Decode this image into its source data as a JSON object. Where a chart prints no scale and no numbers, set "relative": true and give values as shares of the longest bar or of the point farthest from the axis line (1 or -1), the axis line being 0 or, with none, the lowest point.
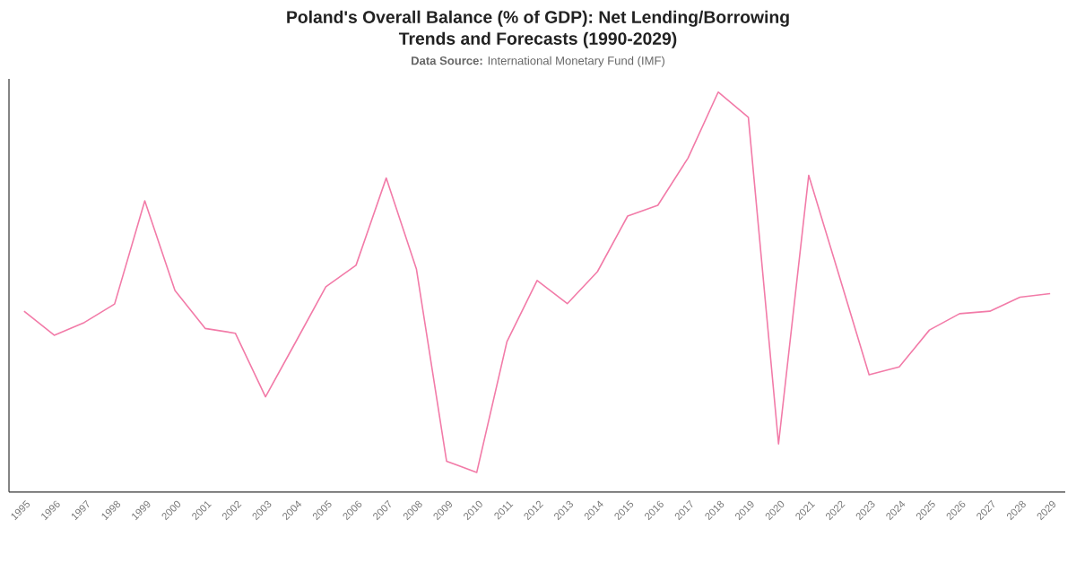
{
  "chart_data": {
    "type": "line",
    "title": "Poland's Overall Balance (% of GDP): Net Lending/Borrowing Trends and Forecasts (1990-2029)",
    "subtitle": "**Data Source:** International Monetary Fund (IMF)",
    "categories": [
      "1995",
      "1996",
      "1997",
      "1998",
      "1999",
      "2000",
      "2001",
      "2002",
      "2003",
      "2004",
      "2005",
      "2006",
      "2007",
      "2008",
      "2009",
      "2010",
      "2011",
      "2012",
      "2013",
      "2014",
      "2015",
      "2016",
      "2017",
      "2018",
      "2019",
      "2020",
      "2021",
      "2022",
      "2023",
      "2024",
      "2025",
      "2026",
      "2027",
      "2028",
      "2029"
    ],
    "relative": true,
    "series": [
      {
        "color": "#f27ba8",
        "values": [
          0.452,
          0.392,
          0.424,
          0.47,
          0.728,
          0.504,
          0.409,
          0.397,
          0.238,
          0.375,
          0.513,
          0.567,
          0.785,
          0.558,
          0.077,
          0.049,
          0.376,
          0.529,
          0.471,
          0.551,
          0.69,
          0.717,
          0.835,
          1,
          0.937,
          0.12,
          0.792,
          0.543,
          0.293,
          0.313,
          0.405,
          0.446,
          0.452,
          0.487,
          0.496
        ]
      }
    ]
  }
}
